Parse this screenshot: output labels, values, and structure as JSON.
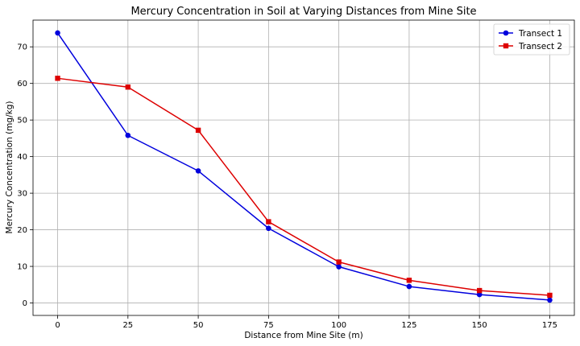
{
  "chart_data": {
    "type": "line",
    "title": "Mercury Concentration in Soil at Varying Distances from Mine Site",
    "xlabel": "Distance from Mine Site (m)",
    "ylabel": "Mercury Concentration (mg/kg)",
    "x": [
      0,
      25,
      50,
      75,
      100,
      125,
      150,
      175
    ],
    "xlim": [
      -8.75,
      183.75
    ],
    "ylim": [
      -3.4,
      77.3
    ],
    "xticks": [
      0,
      25,
      50,
      75,
      100,
      125,
      150,
      175
    ],
    "yticks": [
      0,
      10,
      20,
      30,
      40,
      50,
      60,
      70
    ],
    "grid": true,
    "legend_position": "top-right",
    "series": [
      {
        "name": "Transect 1",
        "color": "#0000dd",
        "marker": "circle",
        "values": [
          73.8,
          45.8,
          36.1,
          20.4,
          9.9,
          4.5,
          2.3,
          0.8
        ]
      },
      {
        "name": "Transect 2",
        "color": "#dd0000",
        "marker": "square",
        "values": [
          61.4,
          59.0,
          47.2,
          22.2,
          11.2,
          6.2,
          3.4,
          2.1
        ]
      }
    ]
  }
}
